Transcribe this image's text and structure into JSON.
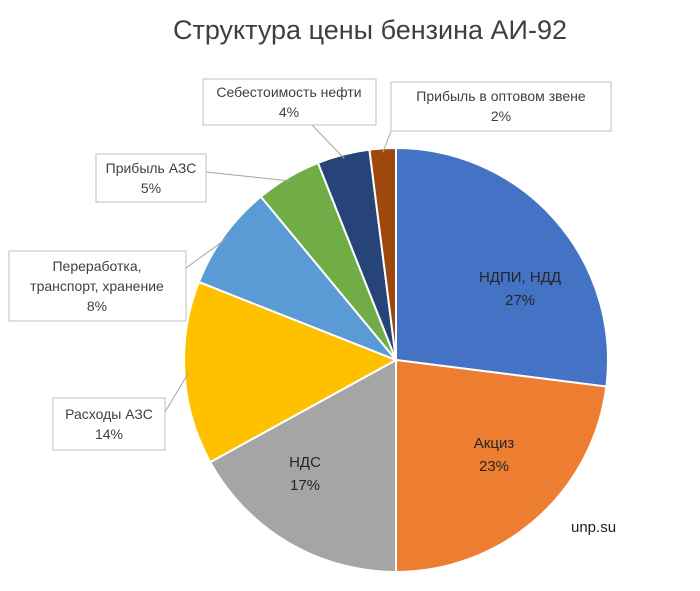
{
  "chart_data": {
    "type": "pie",
    "title": "Структура цены бензина АИ-92",
    "slices": [
      {
        "label": "НДПИ, НДД",
        "value": 27,
        "pct_label": "27%",
        "color": "#4472C4"
      },
      {
        "label": "Акциз",
        "value": 23,
        "pct_label": "23%",
        "color": "#ED7D31"
      },
      {
        "label": "НДС",
        "value": 17,
        "pct_label": "17%",
        "color": "#A5A5A5"
      },
      {
        "label": "Расходы АЗС",
        "value": 14,
        "pct_label": "14%",
        "color": "#FFC000"
      },
      {
        "label": "Переработка, транспорт, хранение",
        "label_lines": [
          "Переработка,",
          "транспорт, хранение"
        ],
        "value": 8,
        "pct_label": "8%",
        "color": "#5B9BD5"
      },
      {
        "label": "Прибыль АЗС",
        "value": 5,
        "pct_label": "5%",
        "color": "#70AD47"
      },
      {
        "label": "Себестоимость нефти",
        "value": 4,
        "pct_label": "4%",
        "color": "#264478"
      },
      {
        "label": "Прибыль в оптовом звене",
        "value": 2,
        "pct_label": "2%",
        "color": "#9E480E"
      }
    ],
    "watermark": "unp.su"
  }
}
